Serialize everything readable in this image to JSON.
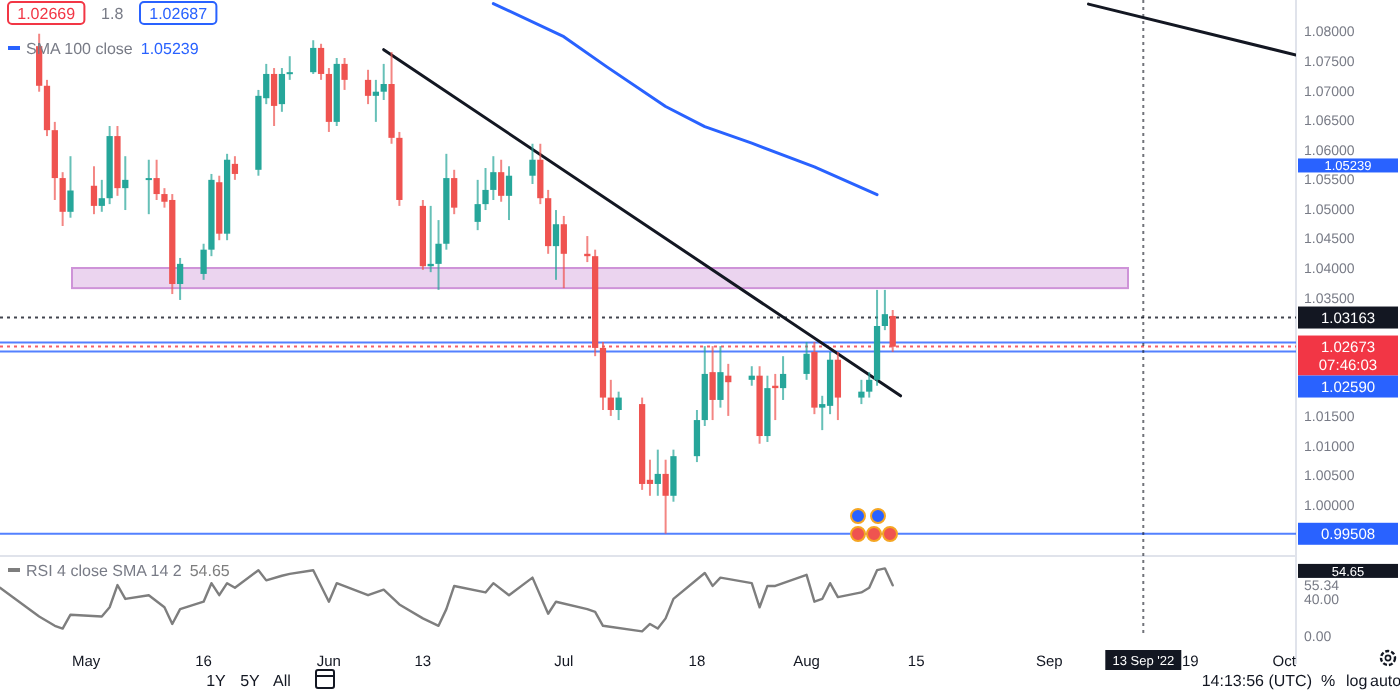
{
  "chart_data": [
    {
      "type": "candlestick",
      "xlim": [
        "2022-04-20",
        "2022-10-02T12:00"
      ],
      "ylim": [
        0.992,
        1.0853
      ],
      "tick_labels": "y",
      "legend": "top left",
      "yticks": [
        {
          "value": 1,
          "label": "1.00000"
        },
        {
          "value": 1.005,
          "label": "1.00500"
        },
        {
          "value": 1.01,
          "label": "1.01000"
        },
        {
          "value": 1.015,
          "label": "1.01500"
        },
        {
          "value": 1.035,
          "label": "1.03500"
        },
        {
          "value": 1.04,
          "label": "1.04000"
        },
        {
          "value": 1.045,
          "label": "1.04500"
        },
        {
          "value": 1.05,
          "label": "1.05000"
        },
        {
          "value": 1.055,
          "label": "1.05500"
        },
        {
          "value": 1.06,
          "label": "1.06000"
        },
        {
          "value": 1.065,
          "label": "1.06500"
        },
        {
          "value": 1.07,
          "label": "1.07000"
        },
        {
          "value": 1.075,
          "label": "1.07500"
        },
        {
          "value": 1.08,
          "label": "1.08000"
        }
      ],
      "x": [
        "2022-04-25",
        "2022-04-26",
        "2022-04-27",
        "2022-04-28",
        "2022-04-29",
        "2022-05-02",
        "2022-05-03",
        "2022-05-04",
        "2022-05-05",
        "2022-05-06",
        "2022-05-09",
        "2022-05-10",
        "2022-05-11",
        "2022-05-12",
        "2022-05-13",
        "2022-05-16",
        "2022-05-17",
        "2022-05-18",
        "2022-05-19",
        "2022-05-20",
        "2022-05-23",
        "2022-05-24",
        "2022-05-25",
        "2022-05-26",
        "2022-05-27",
        "2022-05-30",
        "2022-05-31",
        "2022-06-01",
        "2022-06-02",
        "2022-06-03",
        "2022-06-06",
        "2022-06-07",
        "2022-06-08",
        "2022-06-09",
        "2022-06-10",
        "2022-06-13",
        "2022-06-14",
        "2022-06-15",
        "2022-06-16",
        "2022-06-17",
        "2022-06-20",
        "2022-06-21",
        "2022-06-22",
        "2022-06-23",
        "2022-06-24",
        "2022-06-27",
        "2022-06-28",
        "2022-06-29",
        "2022-06-30",
        "2022-07-01",
        "2022-07-04",
        "2022-07-05",
        "2022-07-06",
        "2022-07-07",
        "2022-07-08",
        "2022-07-11",
        "2022-07-12",
        "2022-07-13",
        "2022-07-14",
        "2022-07-15",
        "2022-07-18",
        "2022-07-19",
        "2022-07-20",
        "2022-07-21",
        "2022-07-22",
        "2022-07-25",
        "2022-07-26",
        "2022-07-27",
        "2022-07-28",
        "2022-07-29",
        "2022-08-01",
        "2022-08-02",
        "2022-08-03",
        "2022-08-04",
        "2022-08-05",
        "2022-08-08",
        "2022-08-09",
        "2022-08-10",
        "2022-08-11",
        "2022-08-12"
      ],
      "ohlc": [
        [
          1.0775,
          1.0796,
          1.0698,
          1.0708
        ],
        [
          1.0708,
          1.0718,
          1.0623,
          1.0633
        ],
        [
          1.0633,
          1.0647,
          1.0515,
          1.0552
        ],
        [
          1.0552,
          1.0562,
          1.0471,
          1.0495
        ],
        [
          1.0495,
          1.0589,
          1.0485,
          1.0531
        ],
        [
          1.0539,
          1.0572,
          1.0491,
          1.0505
        ],
        [
          1.0505,
          1.0549,
          1.0495,
          1.0518
        ],
        [
          1.0518,
          1.064,
          1.0508,
          1.0623
        ],
        [
          1.0623,
          1.064,
          1.0522,
          1.0535
        ],
        [
          1.0535,
          1.0589,
          1.0498,
          1.0549
        ],
        [
          1.0549,
          1.0583,
          1.0491,
          1.0552
        ],
        [
          1.0552,
          1.0583,
          1.0515,
          1.0525
        ],
        [
          1.0525,
          1.0535,
          1.0502,
          1.0512
        ],
        [
          1.0515,
          1.0525,
          1.0356,
          1.0373
        ],
        [
          1.0373,
          1.0417,
          1.0346,
          1.0407
        ],
        [
          1.039,
          1.0441,
          1.038,
          1.0431
        ],
        [
          1.0431,
          1.0559,
          1.042,
          1.0549
        ],
        [
          1.0545,
          1.0556,
          1.0447,
          1.0458
        ],
        [
          1.0458,
          1.0593,
          1.0447,
          1.0583
        ],
        [
          1.0576,
          1.0589,
          1.0549,
          1.0559
        ],
        [
          1.0566,
          1.0701,
          1.0556,
          1.0691
        ],
        [
          1.0687,
          1.0745,
          1.0677,
          1.0728
        ],
        [
          1.0728,
          1.0738,
          1.064,
          1.0674
        ],
        [
          1.0677,
          1.0738,
          1.0664,
          1.0728
        ],
        [
          1.0728,
          1.0758,
          1.0718,
          1.0731
        ],
        [
          1.0731,
          1.0785,
          1.0728,
          1.0772
        ],
        [
          1.0772,
          1.0779,
          1.0718,
          1.0728
        ],
        [
          1.0728,
          1.0738,
          1.063,
          1.0647
        ],
        [
          1.0647,
          1.0755,
          1.064,
          1.0745
        ],
        [
          1.0745,
          1.0755,
          1.0701,
          1.0718
        ],
        [
          1.0718,
          1.0735,
          1.0677,
          1.0691
        ],
        [
          1.0691,
          1.0718,
          1.0647,
          1.0698
        ],
        [
          1.0698,
          1.0745,
          1.0684,
          1.0711
        ],
        [
          1.0711,
          1.0765,
          1.061,
          1.062
        ],
        [
          1.062,
          1.063,
          1.0505,
          1.0515
        ],
        [
          1.0505,
          1.0515,
          1.0397,
          1.0403
        ],
        [
          1.0403,
          1.0505,
          1.0393,
          1.0407
        ],
        [
          1.0407,
          1.0481,
          1.0363,
          1.0441
        ],
        [
          1.0441,
          1.0593,
          1.0431,
          1.0552
        ],
        [
          1.0552,
          1.0566,
          1.0491,
          1.0502
        ],
        [
          1.0478,
          1.0549,
          1.0464,
          1.0508
        ],
        [
          1.0508,
          1.0569,
          1.0498,
          1.0532
        ],
        [
          1.0532,
          1.0589,
          1.0515,
          1.0562
        ],
        [
          1.0562,
          1.0583,
          1.0512,
          1.0522
        ],
        [
          1.0522,
          1.0572,
          1.0481,
          1.0556
        ],
        [
          1.0556,
          1.061,
          1.0542,
          1.0583
        ],
        [
          1.0583,
          1.061,
          1.0508,
          1.0518
        ],
        [
          1.0518,
          1.0532,
          1.0424,
          1.0437
        ],
        [
          1.0437,
          1.0498,
          1.038,
          1.0474
        ],
        [
          1.0474,
          1.0488,
          1.0366,
          1.0424
        ],
        [
          1.0424,
          1.0454,
          1.041,
          1.042
        ],
        [
          1.042,
          1.0431,
          1.0251,
          1.0265
        ],
        [
          1.0265,
          1.0275,
          1.016,
          1.0181
        ],
        [
          1.0181,
          1.0211,
          1.015,
          1.016
        ],
        [
          1.016,
          1.0191,
          1.0143,
          1.0181
        ],
        [
          1.017,
          1.0181,
          1.0025,
          1.0035
        ],
        [
          1.0042,
          1.0076,
          1.0015,
          1.0035
        ],
        [
          1.0035,
          1.0093,
          1.0015,
          1.0052
        ],
        [
          1.0052,
          1.0076,
          0.9951,
          1.0015
        ],
        [
          1.0015,
          1.0093,
          1.0005,
          1.0082
        ],
        [
          1.0082,
          1.016,
          1.0072,
          1.0143
        ],
        [
          1.0143,
          1.0268,
          1.0133,
          1.0221
        ],
        [
          1.0224,
          1.0268,
          1.0143,
          1.0177
        ],
        [
          1.0177,
          1.0268,
          1.0164,
          1.0224
        ],
        [
          1.0218,
          1.0238,
          1.015,
          1.0207
        ],
        [
          1.0211,
          1.0234,
          1.0201,
          1.0218
        ],
        [
          1.0218,
          1.0234,
          1.0103,
          1.0116
        ],
        [
          1.0116,
          1.0218,
          1.0106,
          1.0197
        ],
        [
          1.0201,
          1.0221,
          1.0143,
          1.0197
        ],
        [
          1.0197,
          1.0251,
          1.0177,
          1.0221
        ],
        [
          1.0221,
          1.0275,
          1.0211,
          1.0255
        ],
        [
          1.0258,
          1.0275,
          1.0153,
          1.0164
        ],
        [
          1.0164,
          1.0184,
          1.0126,
          1.017
        ],
        [
          1.0167,
          1.0258,
          1.0153,
          1.0245
        ],
        [
          1.0245,
          1.0258,
          1.0143,
          1.0181
        ],
        [
          1.0181,
          1.0211,
          1.017,
          1.0191
        ],
        [
          1.0191,
          1.0224,
          1.0181,
          1.0211
        ],
        [
          1.0211,
          1.0363,
          1.0201,
          1.0302
        ],
        [
          1.0302,
          1.0363,
          1.0295,
          1.0322
        ],
        [
          1.0319,
          1.0329,
          1.0258,
          1.0267
        ]
      ],
      "series": [
        {
          "type": "line",
          "name": "SMA 100 close",
          "color": "#2962ff",
          "x": [
            "2022-06-22",
            "2022-07-01",
            "2022-07-06T12:00",
            "2022-07-14",
            "2022-07-19",
            "2022-07-25",
            "2022-08-02",
            "2022-08-10"
          ],
          "values": [
            1.0847,
            1.0791,
            1.074,
            1.0673,
            1.0639,
            1.0611,
            1.0571,
            1.05239
          ]
        },
        {
          "type": "line",
          "color": "#131722",
          "x": [
            "2022-06-08",
            "2022-08-13"
          ],
          "values": [
            1.0769,
            1.0184
          ]
        },
        {
          "type": "line",
          "color": "#131722",
          "x": [
            "2022-09-06",
            "2022-10-02T12:00"
          ],
          "values": [
            1.0846,
            1.076
          ]
        }
      ],
      "bands": [
        {
          "axis": "y",
          "from": 1.0366,
          "to": 1.04,
          "color": "#ce93d8"
        }
      ],
      "ref_lines": [
        {
          "axis": "y",
          "value": 1.03163,
          "label": "1.03163",
          "color": "#131722",
          "line_style": "dotted"
        },
        {
          "axis": "y",
          "value": 1.02673,
          "label": "1.02673\n07:46:03",
          "color": "#f23645",
          "line_style": "dotted"
        },
        {
          "axis": "y",
          "value": 1.0274,
          "label": null,
          "color": "#2962ff"
        },
        {
          "axis": "y",
          "value": 1.0259,
          "label": "1.02590",
          "color": "#2962ff"
        },
        {
          "axis": "y",
          "value": 0.99508,
          "label": "0.99508",
          "color": "#2962ff"
        }
      ],
      "annotations": [
        "1.02669",
        "1.8",
        "1.02687",
        "1.05239",
        "1.05239"
      ]
    },
    {
      "type": "line",
      "xlim": [
        "2022-04-20",
        "2022-10-02T12:00"
      ],
      "ylim": [
        0,
        82
      ],
      "legend": "top left",
      "yticks": [
        {
          "value": 0,
          "label": "0.00"
        },
        {
          "value": 40,
          "label": "40.00"
        },
        {
          "value": 55.34,
          "label": "55.34"
        }
      ],
      "xticks": [
        {
          "value": "2022-05-01",
          "label": "May"
        },
        {
          "value": "2022-05-16",
          "label": "16"
        },
        {
          "value": "2022-06-01",
          "label": "Jun"
        },
        {
          "value": "2022-06-13",
          "label": "13"
        },
        {
          "value": "2022-07-01",
          "label": "Jul"
        },
        {
          "value": "2022-07-18",
          "label": "18"
        },
        {
          "value": "2022-08-01",
          "label": "Aug"
        },
        {
          "value": "2022-08-15",
          "label": "15"
        },
        {
          "value": "2022-09-01",
          "label": "Sep"
        },
        {
          "value": "2022-09-19",
          "label": "19"
        },
        {
          "value": "2022-10-01",
          "label": "Oct"
        }
      ],
      "series": [
        {
          "name": "RSI 4 close SMA 14 2",
          "color": "#7e7e7e",
          "x": [
            "2022-04-20",
            "2022-04-25",
            "2022-04-27",
            "2022-04-28",
            "2022-04-29",
            "2022-05-03",
            "2022-05-04",
            "2022-05-05",
            "2022-05-06",
            "2022-05-09",
            "2022-05-11",
            "2022-05-12",
            "2022-05-13",
            "2022-05-16",
            "2022-05-17",
            "2022-05-18",
            "2022-05-19",
            "2022-05-20",
            "2022-05-23",
            "2022-05-24",
            "2022-05-26",
            "2022-05-27",
            "2022-05-30",
            "2022-06-01",
            "2022-06-02",
            "2022-06-06",
            "2022-06-08",
            "2022-06-10",
            "2022-06-13",
            "2022-06-15",
            "2022-06-16",
            "2022-06-17",
            "2022-06-21",
            "2022-06-22",
            "2022-06-24",
            "2022-06-27",
            "2022-06-29",
            "2022-06-30",
            "2022-07-04",
            "2022-07-05",
            "2022-07-06",
            "2022-07-11",
            "2022-07-12",
            "2022-07-13",
            "2022-07-14",
            "2022-07-15",
            "2022-07-19",
            "2022-07-20",
            "2022-07-21",
            "2022-07-25",
            "2022-07-26",
            "2022-07-27",
            "2022-07-28",
            "2022-08-01",
            "2022-08-02",
            "2022-08-03",
            "2022-08-04",
            "2022-08-05",
            "2022-08-08",
            "2022-08-09",
            "2022-08-10",
            "2022-08-11",
            "2022-08-12"
          ],
          "values": [
            52,
            21,
            11,
            8,
            23,
            21,
            31,
            55,
            40,
            44,
            31,
            13,
            29,
            37,
            57,
            44,
            57,
            52,
            71,
            60,
            65,
            67,
            71,
            37,
            57,
            44,
            50,
            34,
            19,
            11,
            29,
            54,
            47,
            57,
            44,
            63,
            24,
            37,
            29,
            26,
            11,
            5,
            13,
            8,
            19,
            40,
            68,
            54,
            63,
            57,
            31,
            54,
            54,
            66,
            37,
            40,
            57,
            42,
            47,
            52,
            71,
            73,
            54.65
          ]
        }
      ],
      "ref_lines": [
        {
          "axis": "x",
          "value": "2022-09-13",
          "label": "13 Sep '22",
          "color": "#131722",
          "line_style": "dotted"
        }
      ],
      "annotations": [
        "1Y",
        "5Y",
        "All",
        "14:13:56 (UTC)",
        "%",
        "log",
        "auto",
        "54.65",
        "54.65"
      ]
    }
  ]
}
